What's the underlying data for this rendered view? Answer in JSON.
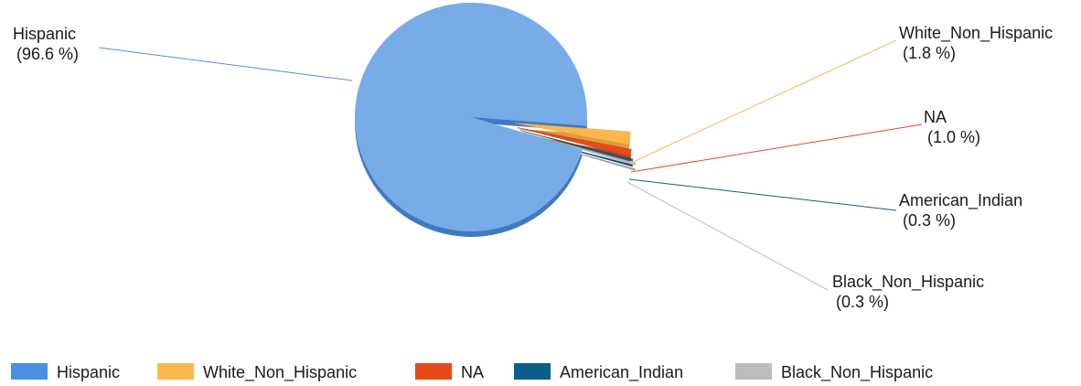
{
  "chart_data": {
    "type": "pie",
    "title": "",
    "legend_position": "bottom",
    "slices": [
      {
        "name": "Hispanic",
        "percent": 96.6,
        "percent_label": "(96.6 %)",
        "color": "#4a90e2"
      },
      {
        "name": "White_Non_Hispanic",
        "percent": 1.8,
        "percent_label": "(1.8 %)",
        "color": "#ffb74d"
      },
      {
        "name": "NA",
        "percent": 1.0,
        "percent_label": "(1.0 %)",
        "color": "#e64a19"
      },
      {
        "name": "American_Indian",
        "percent": 0.3,
        "percent_label": "(0.3 %)",
        "color": "#0b5f8a"
      },
      {
        "name": "Black_Non_Hispanic",
        "percent": 0.3,
        "percent_label": "(0.3 %)",
        "color": "#bdbdbd"
      }
    ]
  }
}
